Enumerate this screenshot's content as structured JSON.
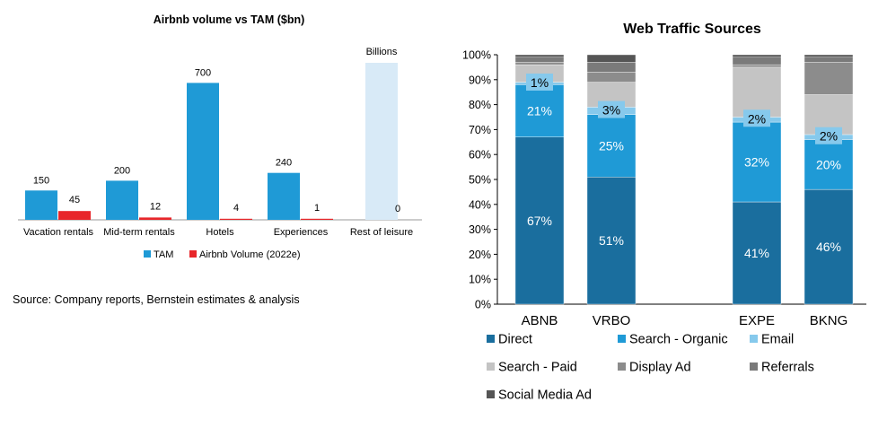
{
  "left": {
    "chart_data": {
      "type": "bar",
      "title": "Airbnb volume vs TAM ($bn)",
      "categories": [
        "Vacation rentals",
        "Mid-term rentals",
        "Hotels",
        "Experiences",
        "Rest of leisure"
      ],
      "series": [
        {
          "name": "TAM",
          "values": [
            150,
            200,
            700,
            240,
            null
          ],
          "labels": [
            "150",
            "200",
            "700",
            "240",
            ""
          ]
        },
        {
          "name": "Airbnb Volume (2022e)",
          "values": [
            45,
            12,
            4,
            1,
            0
          ],
          "labels": [
            "45",
            "12",
            "4",
            "1",
            "0"
          ]
        }
      ],
      "highlight": {
        "category": "Rest of leisure",
        "label": "Billions"
      },
      "xlabel": "",
      "ylabel": "",
      "legend": "bottom",
      "grid": false
    },
    "colors": {
      "tam": "#1f9ad6",
      "airbnb": "#e8262a",
      "rest": "#d8eaf7"
    },
    "source": "Source: Company reports, Bernstein estimates & analysis"
  },
  "right": {
    "chart_data": {
      "type": "bar",
      "stacked": true,
      "title": "Web Traffic Sources",
      "categories": [
        "ABNB",
        "VRBO",
        "",
        "EXPE",
        "BKNG"
      ],
      "y_ticks": [
        "0%",
        "10%",
        "20%",
        "30%",
        "40%",
        "50%",
        "60%",
        "70%",
        "80%",
        "90%",
        "100%"
      ],
      "ylim": [
        0,
        100
      ],
      "series": [
        {
          "name": "Direct",
          "values": [
            67,
            51,
            null,
            41,
            46
          ],
          "labels": [
            "67%",
            "51%",
            "",
            "41%",
            "46%"
          ]
        },
        {
          "name": "Search - Organic",
          "values": [
            21,
            25,
            null,
            32,
            20
          ],
          "labels": [
            "21%",
            "25%",
            "",
            "32%",
            "20%"
          ]
        },
        {
          "name": "Email",
          "values": [
            1,
            3,
            null,
            2,
            2
          ],
          "labels": [
            "1%",
            "3%",
            "",
            "2%",
            "2%"
          ]
        },
        {
          "name": "Search - Paid",
          "values": [
            7,
            10,
            null,
            20,
            16
          ],
          "labels": [
            "",
            "",
            "",
            "",
            ""
          ]
        },
        {
          "name": "Display Ad",
          "values": [
            1,
            4,
            null,
            1,
            13
          ],
          "labels": [
            "",
            "",
            "",
            "",
            ""
          ]
        },
        {
          "name": "Referrals",
          "values": [
            2,
            4,
            null,
            3,
            2
          ],
          "labels": [
            "",
            "",
            "",
            "",
            ""
          ]
        },
        {
          "name": "Social Media Ad",
          "values": [
            1,
            3,
            null,
            1,
            1
          ],
          "labels": [
            "",
            "",
            "",
            "",
            ""
          ]
        }
      ],
      "legend": "bottom",
      "grid": false
    },
    "colors": [
      "#1a6e9e",
      "#1f9ad6",
      "#86c9ec",
      "#c4c4c4",
      "#8c8c8c",
      "#7a7a7a",
      "#555555"
    ]
  }
}
